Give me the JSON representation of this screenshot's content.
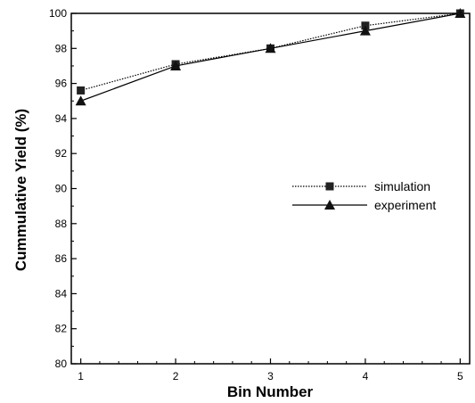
{
  "chart_data": {
    "type": "line",
    "title": "",
    "xlabel": "Bin Number",
    "ylabel": "Cummulative Yield (%)",
    "x": [
      1,
      2,
      3,
      4,
      5
    ],
    "xticks": [
      "1",
      "2",
      "3",
      "4",
      "5"
    ],
    "xlim": [
      0.9,
      5.1
    ],
    "ylim": [
      80,
      100
    ],
    "yticks": [
      "80",
      "82",
      "84",
      "86",
      "88",
      "90",
      "92",
      "94",
      "96",
      "98",
      "100"
    ],
    "grid": false,
    "legend_position": "center-right",
    "series": [
      {
        "name": "simulation",
        "marker": "square",
        "line_style": "dotted",
        "color": "#000000",
        "values": [
          95.6,
          97.1,
          98.0,
          99.3,
          100.0
        ]
      },
      {
        "name": "experiment",
        "marker": "triangle",
        "line_style": "solid",
        "color": "#000000",
        "values": [
          95.0,
          97.0,
          98.0,
          99.0,
          100.0
        ]
      }
    ]
  }
}
